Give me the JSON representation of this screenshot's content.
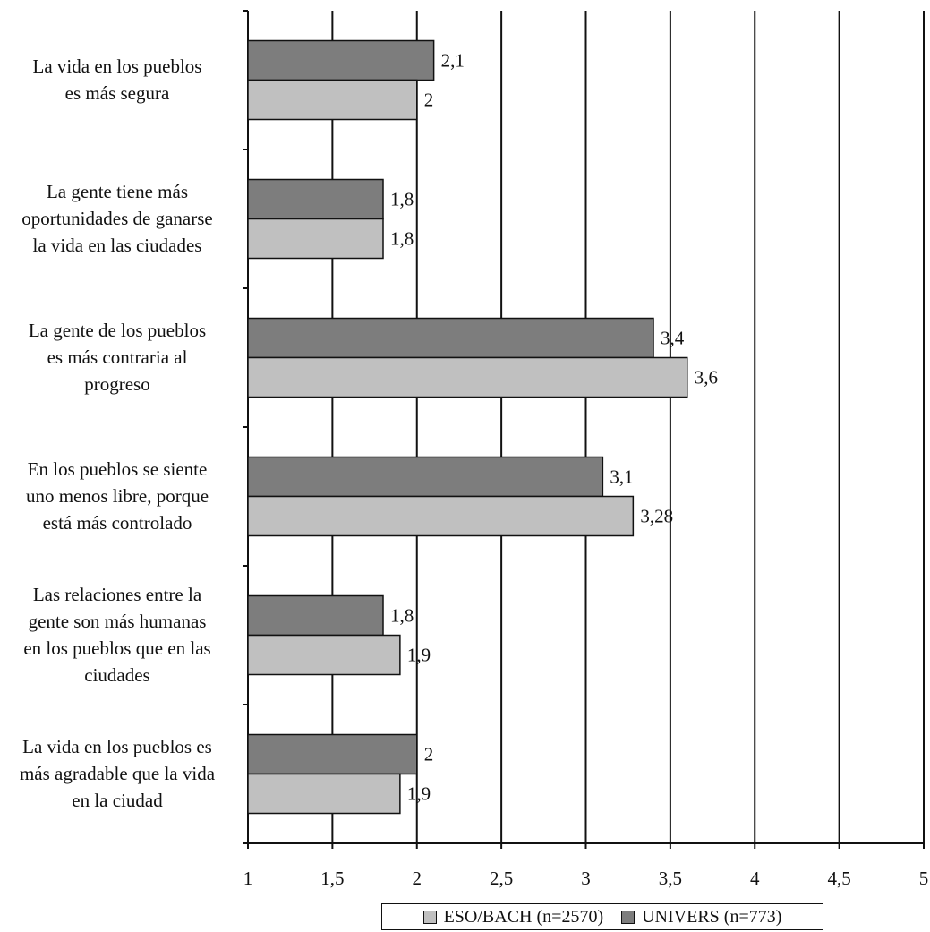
{
  "chart_data": {
    "type": "bar",
    "orientation": "horizontal",
    "categories": [
      [
        "La vida en los pueblos",
        "es más segura"
      ],
      [
        "La gente tiene más",
        "oportunidades de ganarse",
        "la vida en las ciudades"
      ],
      [
        "La gente de los pueblos",
        "es más contraria al",
        "progreso"
      ],
      [
        "En los pueblos se siente",
        "uno menos libre, porque",
        "está más controlado"
      ],
      [
        "Las relaciones entre la",
        "gente son más humanas",
        "en los pueblos que en las",
        "ciudades"
      ],
      [
        "La vida en los pueblos es",
        "más agradable que la vida",
        "en la ciudad"
      ]
    ],
    "series": [
      {
        "name": "UNIVERS (n=773)",
        "color": "#7d7d7d",
        "values": [
          2.1,
          1.8,
          3.4,
          3.1,
          1.8,
          2.0
        ],
        "labels": [
          "2,1",
          "1,8",
          "3,4",
          "3,1",
          "1,8",
          "2"
        ]
      },
      {
        "name": "ESO/BACH (n=2570)",
        "color": "#c0c0c0",
        "values": [
          2.0,
          1.8,
          3.6,
          3.28,
          1.9,
          1.9
        ],
        "labels": [
          "2",
          "1,8",
          "3,6",
          "3,28",
          "1,9",
          "1,9"
        ]
      }
    ],
    "xlim": [
      1,
      5
    ],
    "xticks": [
      1,
      1.5,
      2,
      2.5,
      3,
      3.5,
      4,
      4.5,
      5
    ],
    "xtick_labels": [
      "1",
      "1,5",
      "2",
      "2,5",
      "3",
      "3,5",
      "4",
      "4,5",
      "5"
    ],
    "grid": "vertical",
    "legend_position": "bottom",
    "legend": [
      "ESO/BACH (n=2570)",
      "UNIVERS (n=773)"
    ]
  }
}
